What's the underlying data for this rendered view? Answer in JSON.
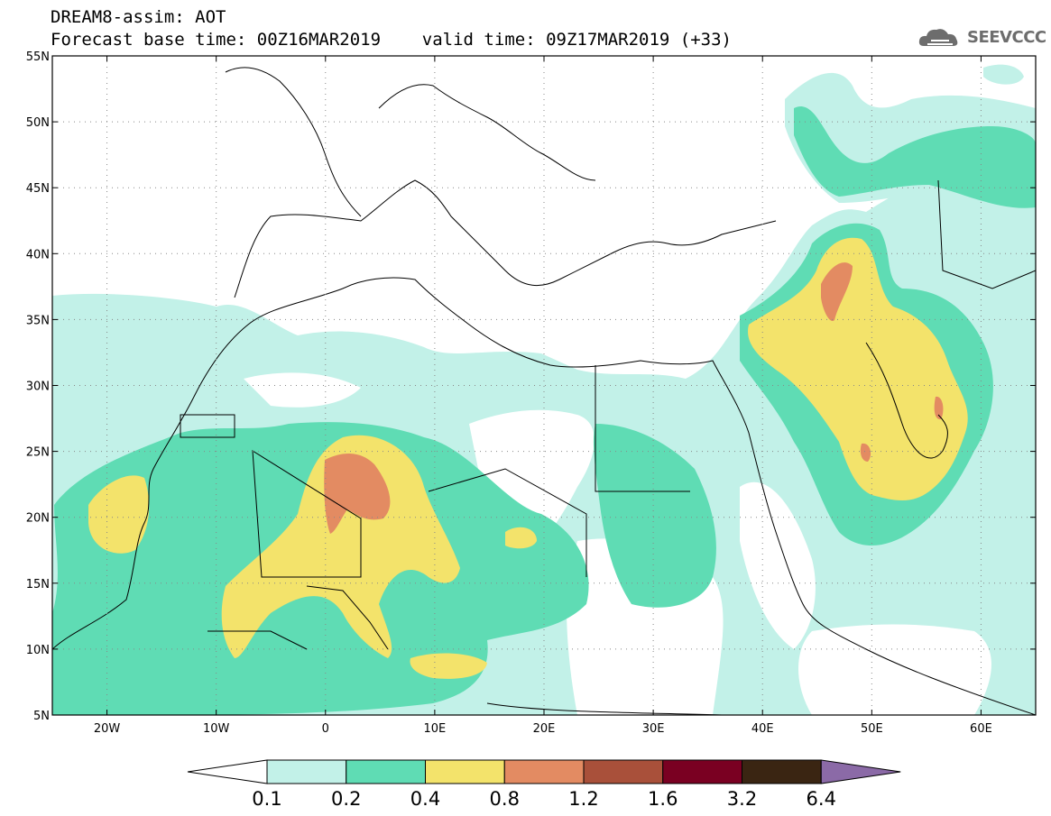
{
  "title": {
    "line1": "DREAM8-assim: AOT",
    "line2": "Forecast base time: 00Z16MAR2019    valid time: 09Z17MAR2019 (+33)"
  },
  "logo": {
    "text": "SEEVCCC",
    "icon": "cloud-icon",
    "color": "#6d6d6d"
  },
  "map": {
    "lon_range": [
      -25,
      65
    ],
    "lat_range": [
      5,
      55
    ],
    "lon_ticks": [
      {
        "value": -20,
        "label": "20W"
      },
      {
        "value": -10,
        "label": "10W"
      },
      {
        "value": 0,
        "label": "0"
      },
      {
        "value": 10,
        "label": "10E"
      },
      {
        "value": 20,
        "label": "20E"
      },
      {
        "value": 30,
        "label": "30E"
      },
      {
        "value": 40,
        "label": "40E"
      },
      {
        "value": 50,
        "label": "50E"
      },
      {
        "value": 60,
        "label": "60E"
      }
    ],
    "lat_ticks": [
      {
        "value": 55,
        "label": "55N"
      },
      {
        "value": 50,
        "label": "50N"
      },
      {
        "value": 45,
        "label": "45N"
      },
      {
        "value": 40,
        "label": "40N"
      },
      {
        "value": 35,
        "label": "35N"
      },
      {
        "value": 30,
        "label": "30N"
      },
      {
        "value": 25,
        "label": "25N"
      },
      {
        "value": 20,
        "label": "20N"
      },
      {
        "value": 15,
        "label": "15N"
      },
      {
        "value": 10,
        "label": "10N"
      },
      {
        "value": 5,
        "label": "5N"
      }
    ],
    "grid": "dotted"
  },
  "colorbar": {
    "labels": [
      "0.1",
      "0.2",
      "0.4",
      "0.8",
      "1.2",
      "1.6",
      "3.2",
      "6.4"
    ],
    "colors": [
      "#ffffff",
      "#c2f1e8",
      "#5fdcb4",
      "#f3e36b",
      "#e38b62",
      "#a9503a",
      "#7a0022",
      "#3a2512",
      "#8b6aa7"
    ]
  },
  "aot_levels": {
    "c1": "#c2f1e8",
    "c2": "#5fdcb4",
    "c3": "#f3e36b",
    "c4": "#e38b62"
  }
}
